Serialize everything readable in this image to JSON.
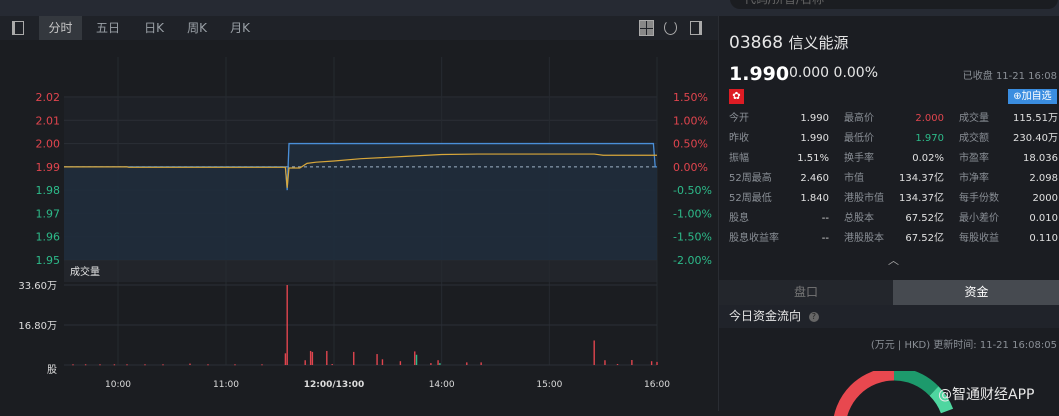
{
  "search": {
    "placeholder": "代码/拼音/名称"
  },
  "toolbar": {
    "tabs": [
      "分时",
      "五日",
      "日K",
      "周K",
      "月K"
    ],
    "active": 0
  },
  "chart_data": {
    "type": "line",
    "price_axis": {
      "ticks": [
        "2.02",
        "2.01",
        "2.00",
        "1.99",
        "1.98",
        "1.97",
        "1.96",
        "1.95"
      ],
      "ylim": [
        1.95,
        2.02
      ],
      "prev_close": 1.99
    },
    "pct_axis": {
      "ticks": [
        "1.50%",
        "1.00%",
        "0.50%",
        "0.00%",
        "-0.50%",
        "-1.00%",
        "-1.50%",
        "-2.00%"
      ]
    },
    "x_ticks": [
      "10:00",
      "11:00",
      "12:00/13:00",
      "14:00",
      "15:00",
      "16:00"
    ],
    "colors": {
      "up": "#e0454e",
      "down": "#2dbb8a",
      "price": "#4a8fd8",
      "avg": "#d8a73a"
    },
    "series": [
      {
        "points": [
          [
            "09:30",
            1.99
          ],
          [
            "11:33",
            1.99
          ],
          [
            "11:34",
            1.98
          ],
          [
            "11:35",
            2.0
          ],
          [
            "15:58",
            2.0
          ],
          [
            "15:59",
            1.99
          ],
          [
            "16:00",
            1.99
          ]
        ]
      },
      {
        "points": [
          [
            "09:30",
            1.99
          ],
          [
            "10:05",
            1.99
          ],
          [
            "10:06",
            1.9898
          ],
          [
            "11:33",
            1.9898
          ],
          [
            "11:34",
            1.981
          ],
          [
            "11:35",
            1.9895
          ],
          [
            "11:41",
            1.9895
          ],
          [
            "11:45",
            1.9915
          ],
          [
            "11:50",
            1.992
          ],
          [
            "12:00",
            1.9925
          ],
          [
            "13:15",
            1.9935
          ],
          [
            "13:40",
            1.9945
          ],
          [
            "14:00",
            1.9953
          ],
          [
            "14:20",
            1.9955
          ],
          [
            "15:25",
            1.9955
          ],
          [
            "15:30",
            1.995
          ],
          [
            "16:00",
            1.995
          ]
        ]
      }
    ],
    "volume": {
      "title": "成交量",
      "ticks": [
        "33.60万",
        "16.80万",
        "股"
      ],
      "ymax": 33.6,
      "bars": [
        [
          "09:35",
          0.3,
          "up"
        ],
        [
          "09:42",
          0.3,
          "up"
        ],
        [
          "09:50",
          0.3,
          "up"
        ],
        [
          "09:58",
          0.3,
          "up"
        ],
        [
          "10:05",
          0.3,
          "up"
        ],
        [
          "10:15",
          0.3,
          "up"
        ],
        [
          "10:25",
          0.3,
          "up"
        ],
        [
          "10:40",
          0.6,
          "up"
        ],
        [
          "10:50",
          0.3,
          "up"
        ],
        [
          "11:05",
          0.3,
          "up"
        ],
        [
          "11:20",
          0.3,
          "up"
        ],
        [
          "11:33",
          4.9,
          "up"
        ],
        [
          "11:34",
          33.6,
          "up"
        ],
        [
          "11:44",
          2.0,
          "up"
        ],
        [
          "11:47",
          5.9,
          "up"
        ],
        [
          "11:48",
          5.5,
          "up"
        ],
        [
          "11:56",
          5.9,
          "up"
        ],
        [
          "11:59",
          0.4,
          "up"
        ],
        [
          "13:11",
          5.5,
          "up"
        ],
        [
          "13:24",
          4.6,
          "up"
        ],
        [
          "13:27",
          2.4,
          "up"
        ],
        [
          "13:37",
          1.6,
          "up"
        ],
        [
          "13:45",
          5.7,
          "up"
        ],
        [
          "13:46",
          4.3,
          "down"
        ],
        [
          "13:54",
          0.8,
          "up"
        ],
        [
          "13:58",
          2.0,
          "up"
        ],
        [
          "13:59",
          0.8,
          "down"
        ],
        [
          "14:14",
          1.1,
          "up"
        ],
        [
          "14:22",
          1.1,
          "up"
        ],
        [
          "15:25",
          10.3,
          "up"
        ],
        [
          "15:31",
          2.0,
          "up"
        ],
        [
          "15:38",
          0.4,
          "up"
        ],
        [
          "15:46",
          2.1,
          "up"
        ],
        [
          "15:57",
          1.6,
          "up"
        ],
        [
          "16:00",
          1.3,
          "up"
        ]
      ]
    }
  },
  "quote": {
    "code": "03868",
    "name": "信义能源",
    "price": "1.990",
    "change": "0.000",
    "pct": "0.00%",
    "status": "已收盘 11-21 16:08",
    "flag": "✿",
    "add": "⊕加自选",
    "rows": [
      [
        [
          "今开",
          "1.990",
          ""
        ],
        [
          "最高价",
          "2.000",
          "#e0454e"
        ],
        [
          "成交量",
          "115.51万",
          ""
        ]
      ],
      [
        [
          "昨收",
          "1.990",
          ""
        ],
        [
          "最低价",
          "1.970",
          "#2dbb8a"
        ],
        [
          "成交额",
          "230.40万",
          ""
        ]
      ],
      [
        [
          "振幅",
          "1.51%",
          ""
        ],
        [
          "换手率",
          "0.02%",
          ""
        ],
        [
          "市盈率",
          "18.036",
          ""
        ]
      ],
      [
        [
          "52周最高",
          "2.460",
          ""
        ],
        [
          "市值",
          "134.37亿",
          ""
        ],
        [
          "市净率",
          "2.098",
          ""
        ]
      ],
      [
        [
          "52周最低",
          "1.840",
          ""
        ],
        [
          "港股市值",
          "134.37亿",
          ""
        ],
        [
          "每手份数",
          "2000",
          ""
        ]
      ],
      [
        [
          "股息",
          "--",
          ""
        ],
        [
          "总股本",
          "67.52亿",
          ""
        ],
        [
          "最小差价",
          "0.010",
          ""
        ]
      ],
      [
        [
          "股息收益率",
          "--",
          ""
        ],
        [
          "港股股本",
          "67.52亿",
          ""
        ],
        [
          "每股收益",
          "0.110",
          ""
        ]
      ]
    ]
  },
  "panel": {
    "tabs": [
      "盘口",
      "资金"
    ],
    "active": 1,
    "flow_title": "今日资金流向",
    "help": "?",
    "update": "(万元 | HKD) 更新时间: 11-21 16:08:05"
  },
  "watermark": "@智通财经APP"
}
